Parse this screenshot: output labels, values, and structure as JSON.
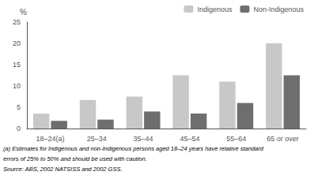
{
  "chart_data": {
    "type": "bar",
    "categories": [
      "18–24(a)",
      "25–34",
      "35–44",
      "45–54",
      "55–64",
      "65 or over"
    ],
    "series": [
      {
        "name": "Indigenous",
        "color": "#c8c8c8",
        "values": [
          3.5,
          6.7,
          7.5,
          12.5,
          11.0,
          20.0
        ]
      },
      {
        "name": "Non-Indigenous",
        "color": "#6e6e6e",
        "values": [
          1.8,
          2.1,
          4.0,
          3.5,
          6.0,
          12.5
        ]
      }
    ],
    "ylabel": "%",
    "ylim": [
      0,
      25
    ],
    "yticks": [
      0,
      5,
      10,
      15,
      20,
      25
    ],
    "grid": false,
    "legend": "upper right",
    "annotations": [
      "(a) Estimates for Indigenous and non-Indigenous persons aged 18–24 years have relative standard",
      "errors of 25% to 50% and should be used with caution.",
      "Source: ABS, 2002 NATSISS and 2002 GSS."
    ]
  }
}
